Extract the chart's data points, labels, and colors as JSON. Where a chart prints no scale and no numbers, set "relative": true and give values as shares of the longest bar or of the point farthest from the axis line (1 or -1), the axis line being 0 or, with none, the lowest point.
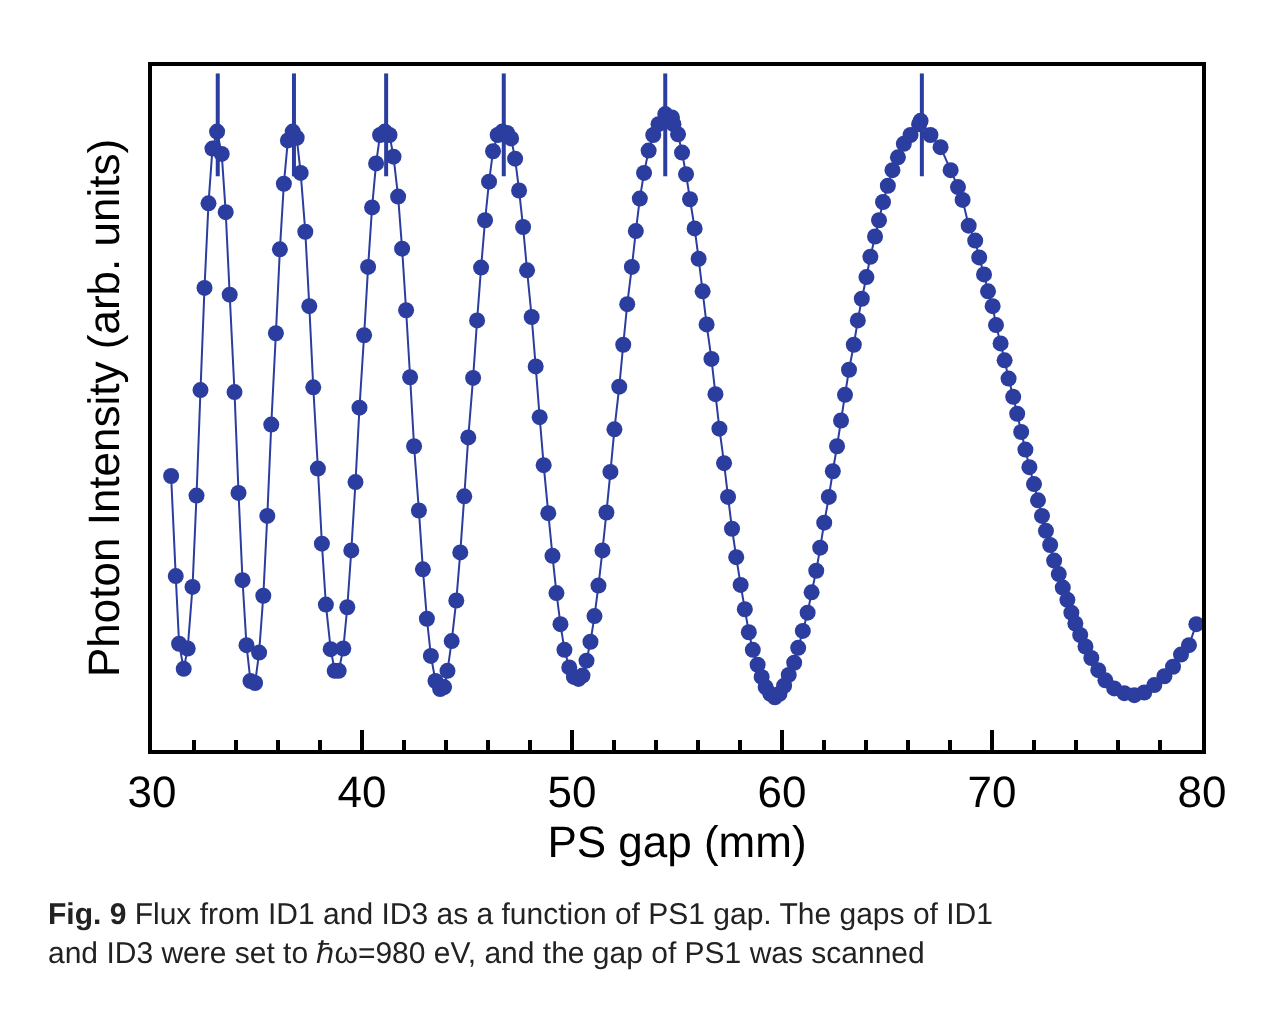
{
  "chart_data": {
    "type": "line",
    "relative": true,
    "xlabel": "PS gap (mm)",
    "ylabel": "Photon Intensity (arb. units)",
    "xlim": [
      30,
      80
    ],
    "xticks": [
      30,
      {
        "value": 32,
        "label": null
      },
      {
        "value": 34,
        "label": null
      },
      {
        "value": 36,
        "label": null
      },
      {
        "value": 38,
        "label": null
      },
      40,
      {
        "value": 42,
        "label": null
      },
      {
        "value": 44,
        "label": null
      },
      {
        "value": 46,
        "label": null
      },
      {
        "value": 48,
        "label": null
      },
      50,
      {
        "value": 52,
        "label": null
      },
      {
        "value": 54,
        "label": null
      },
      {
        "value": 56,
        "label": null
      },
      {
        "value": 58,
        "label": null
      },
      60,
      {
        "value": 62,
        "label": null
      },
      {
        "value": 64,
        "label": null
      },
      {
        "value": 66,
        "label": null
      },
      {
        "value": 68,
        "label": null
      },
      70,
      {
        "value": 72,
        "label": null
      },
      {
        "value": 74,
        "label": null
      },
      {
        "value": 76,
        "label": null
      },
      {
        "value": 78,
        "label": null
      },
      80
    ],
    "marker": "circle",
    "line_style": "solid",
    "series": [
      {
        "color": "#2b3d9e",
        "x": [
          30.91,
          31.13,
          31.29,
          31.51,
          31.7,
          31.93,
          32.12,
          32.31,
          32.5,
          32.69,
          32.88,
          33.1,
          33.32,
          33.51,
          33.7,
          33.93,
          34.12,
          34.31,
          34.5,
          34.69,
          34.91,
          35.1,
          35.3,
          35.49,
          35.68,
          35.9,
          36.09,
          36.28,
          36.47,
          36.7,
          36.89,
          37.08,
          37.3,
          37.49,
          37.68,
          37.9,
          38.09,
          38.28,
          38.51,
          38.7,
          38.89,
          39.11,
          39.3,
          39.49,
          39.69,
          39.88,
          40.1,
          40.29,
          40.48,
          40.67,
          40.86,
          41.09,
          41.31,
          41.5,
          41.72,
          41.91,
          42.1,
          42.29,
          42.48,
          42.71,
          42.9,
          43.09,
          43.28,
          43.5,
          43.72,
          43.91,
          44.07,
          44.27,
          44.49,
          44.68,
          44.87,
          45.06,
          45.29,
          45.48,
          45.67,
          45.86,
          46.05,
          46.24,
          46.46,
          46.68,
          46.91,
          47.1,
          47.29,
          47.48,
          47.67,
          47.86,
          48.08,
          48.27,
          48.46,
          48.65,
          48.87,
          49.07,
          49.26,
          49.45,
          49.64,
          49.87,
          50.09,
          50.31,
          50.5,
          50.69,
          50.88,
          51.07,
          51.26,
          51.45,
          51.64,
          51.83,
          52.02,
          52.25,
          52.44,
          52.63,
          52.85,
          53.04,
          53.23,
          53.43,
          53.65,
          53.87,
          54.12,
          54.44,
          54.76,
          54.83,
          55.05,
          55.24,
          55.43,
          55.62,
          55.84,
          56.03,
          56.22,
          56.41,
          56.64,
          56.83,
          57.02,
          57.24,
          57.43,
          57.62,
          57.82,
          58.03,
          58.23,
          58.42,
          58.61,
          58.84,
          59.03,
          59.22,
          59.44,
          59.66,
          59.88,
          60.1,
          60.32,
          60.58,
          60.77,
          60.99,
          61.22,
          61.41,
          61.63,
          61.82,
          62.01,
          62.23,
          62.42,
          62.62,
          62.81,
          63.0,
          63.19,
          63.42,
          63.61,
          63.8,
          64.02,
          64.21,
          64.43,
          64.62,
          64.81,
          65.04,
          65.26,
          65.52,
          65.8,
          66.12,
          66.53,
          66.6,
          67.07,
          67.55,
          68.03,
          68.38,
          68.6,
          68.89,
          69.2,
          69.39,
          69.62,
          69.81,
          70.03,
          70.19,
          70.41,
          70.6,
          70.79,
          71.01,
          71.2,
          71.39,
          71.59,
          71.78,
          72.0,
          72.19,
          72.38,
          72.57,
          72.77,
          72.96,
          73.18,
          73.37,
          73.59,
          73.78,
          73.97,
          74.2,
          74.45,
          74.73,
          75.06,
          75.4,
          75.82,
          76.3,
          76.78,
          77.25,
          77.73,
          78.21,
          78.62,
          79.0,
          79.38,
          79.73
        ],
        "values": [
          0.405,
          0.257,
          0.157,
          0.12,
          0.15,
          0.241,
          0.376,
          0.532,
          0.683,
          0.808,
          0.889,
          0.914,
          0.881,
          0.795,
          0.673,
          0.529,
          0.38,
          0.251,
          0.155,
          0.102,
          0.099,
          0.144,
          0.228,
          0.346,
          0.481,
          0.616,
          0.74,
          0.837,
          0.901,
          0.914,
          0.905,
          0.853,
          0.766,
          0.656,
          0.536,
          0.416,
          0.305,
          0.215,
          0.149,
          0.117,
          0.117,
          0.15,
          0.211,
          0.295,
          0.396,
          0.506,
          0.613,
          0.714,
          0.802,
          0.867,
          0.909,
          0.914,
          0.909,
          0.877,
          0.818,
          0.741,
          0.65,
          0.551,
          0.449,
          0.354,
          0.267,
          0.194,
          0.139,
          0.102,
          0.09,
          0.093,
          0.117,
          0.161,
          0.221,
          0.292,
          0.375,
          0.462,
          0.55,
          0.635,
          0.713,
          0.783,
          0.84,
          0.885,
          0.909,
          0.914,
          0.912,
          0.904,
          0.874,
          0.827,
          0.773,
          0.709,
          0.64,
          0.567,
          0.492,
          0.421,
          0.35,
          0.287,
          0.232,
          0.186,
          0.148,
          0.122,
          0.108,
          0.105,
          0.11,
          0.132,
          0.16,
          0.198,
          0.243,
          0.295,
          0.351,
          0.411,
          0.474,
          0.537,
          0.599,
          0.659,
          0.714,
          0.767,
          0.815,
          0.853,
          0.886,
          0.909,
          0.925,
          0.94,
          0.935,
          0.925,
          0.91,
          0.883,
          0.851,
          0.814,
          0.771,
          0.726,
          0.678,
          0.629,
          0.578,
          0.526,
          0.475,
          0.424,
          0.374,
          0.327,
          0.285,
          0.244,
          0.208,
          0.174,
          0.148,
          0.126,
          0.108,
          0.093,
          0.083,
          0.078,
          0.083,
          0.095,
          0.111,
          0.129,
          0.151,
          0.176,
          0.203,
          0.233,
          0.265,
          0.299,
          0.336,
          0.374,
          0.412,
          0.449,
          0.487,
          0.525,
          0.562,
          0.599,
          0.635,
          0.667,
          0.699,
          0.729,
          0.759,
          0.783,
          0.81,
          0.834,
          0.857,
          0.876,
          0.896,
          0.909,
          0.925,
          0.93,
          0.909,
          0.891,
          0.857,
          0.832,
          0.813,
          0.775,
          0.753,
          0.728,
          0.703,
          0.678,
          0.656,
          0.628,
          0.601,
          0.576,
          0.549,
          0.522,
          0.497,
          0.47,
          0.444,
          0.418,
          0.393,
          0.369,
          0.346,
          0.324,
          0.303,
          0.28,
          0.26,
          0.24,
          0.222,
          0.203,
          0.187,
          0.17,
          0.153,
          0.136,
          0.118,
          0.103,
          0.091,
          0.084,
          0.081,
          0.085,
          0.096,
          0.109,
          0.123,
          0.141,
          0.155,
          0.186
        ]
      },
      {
        "color": "#2b3d9e",
        "marker": "none",
        "x": [
          33.13,
          33.13
        ],
        "values": [
          1.0,
          0.848
        ]
      },
      {
        "color": "#2b3d9e",
        "marker": "none",
        "x": [
          36.76,
          36.76
        ],
        "values": [
          1.0,
          0.848
        ]
      },
      {
        "color": "#2b3d9e",
        "marker": "none",
        "x": [
          41.15,
          41.15
        ],
        "values": [
          1.0,
          0.848
        ]
      },
      {
        "color": "#2b3d9e",
        "marker": "none",
        "x": [
          46.75,
          46.75
        ],
        "values": [
          1.0,
          0.848
        ]
      },
      {
        "color": "#2b3d9e",
        "marker": "none",
        "x": [
          54.44,
          54.44
        ],
        "values": [
          1.0,
          0.848
        ]
      },
      {
        "color": "#2b3d9e",
        "marker": "none",
        "x": [
          66.66,
          66.66
        ],
        "values": [
          1.0,
          0.848
        ]
      }
    ],
    "annotations": [
      "Fig. 9 Flux from ID1 and ID3 as a function of PS1 gap. The gaps of ID1 and ID3 were set to ℏω=980 eV, and the gap of PS1 was scanned"
    ]
  }
}
